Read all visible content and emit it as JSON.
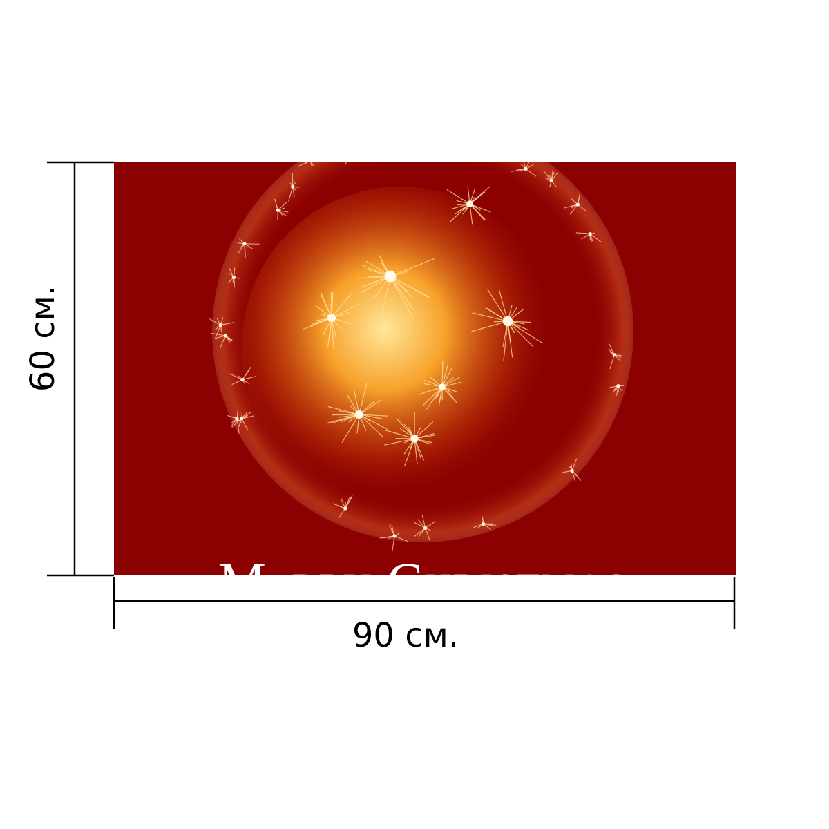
{
  "product": {
    "width_label": "90 см.",
    "height_label": "60 см.",
    "print_text": "Merry Christmas"
  }
}
